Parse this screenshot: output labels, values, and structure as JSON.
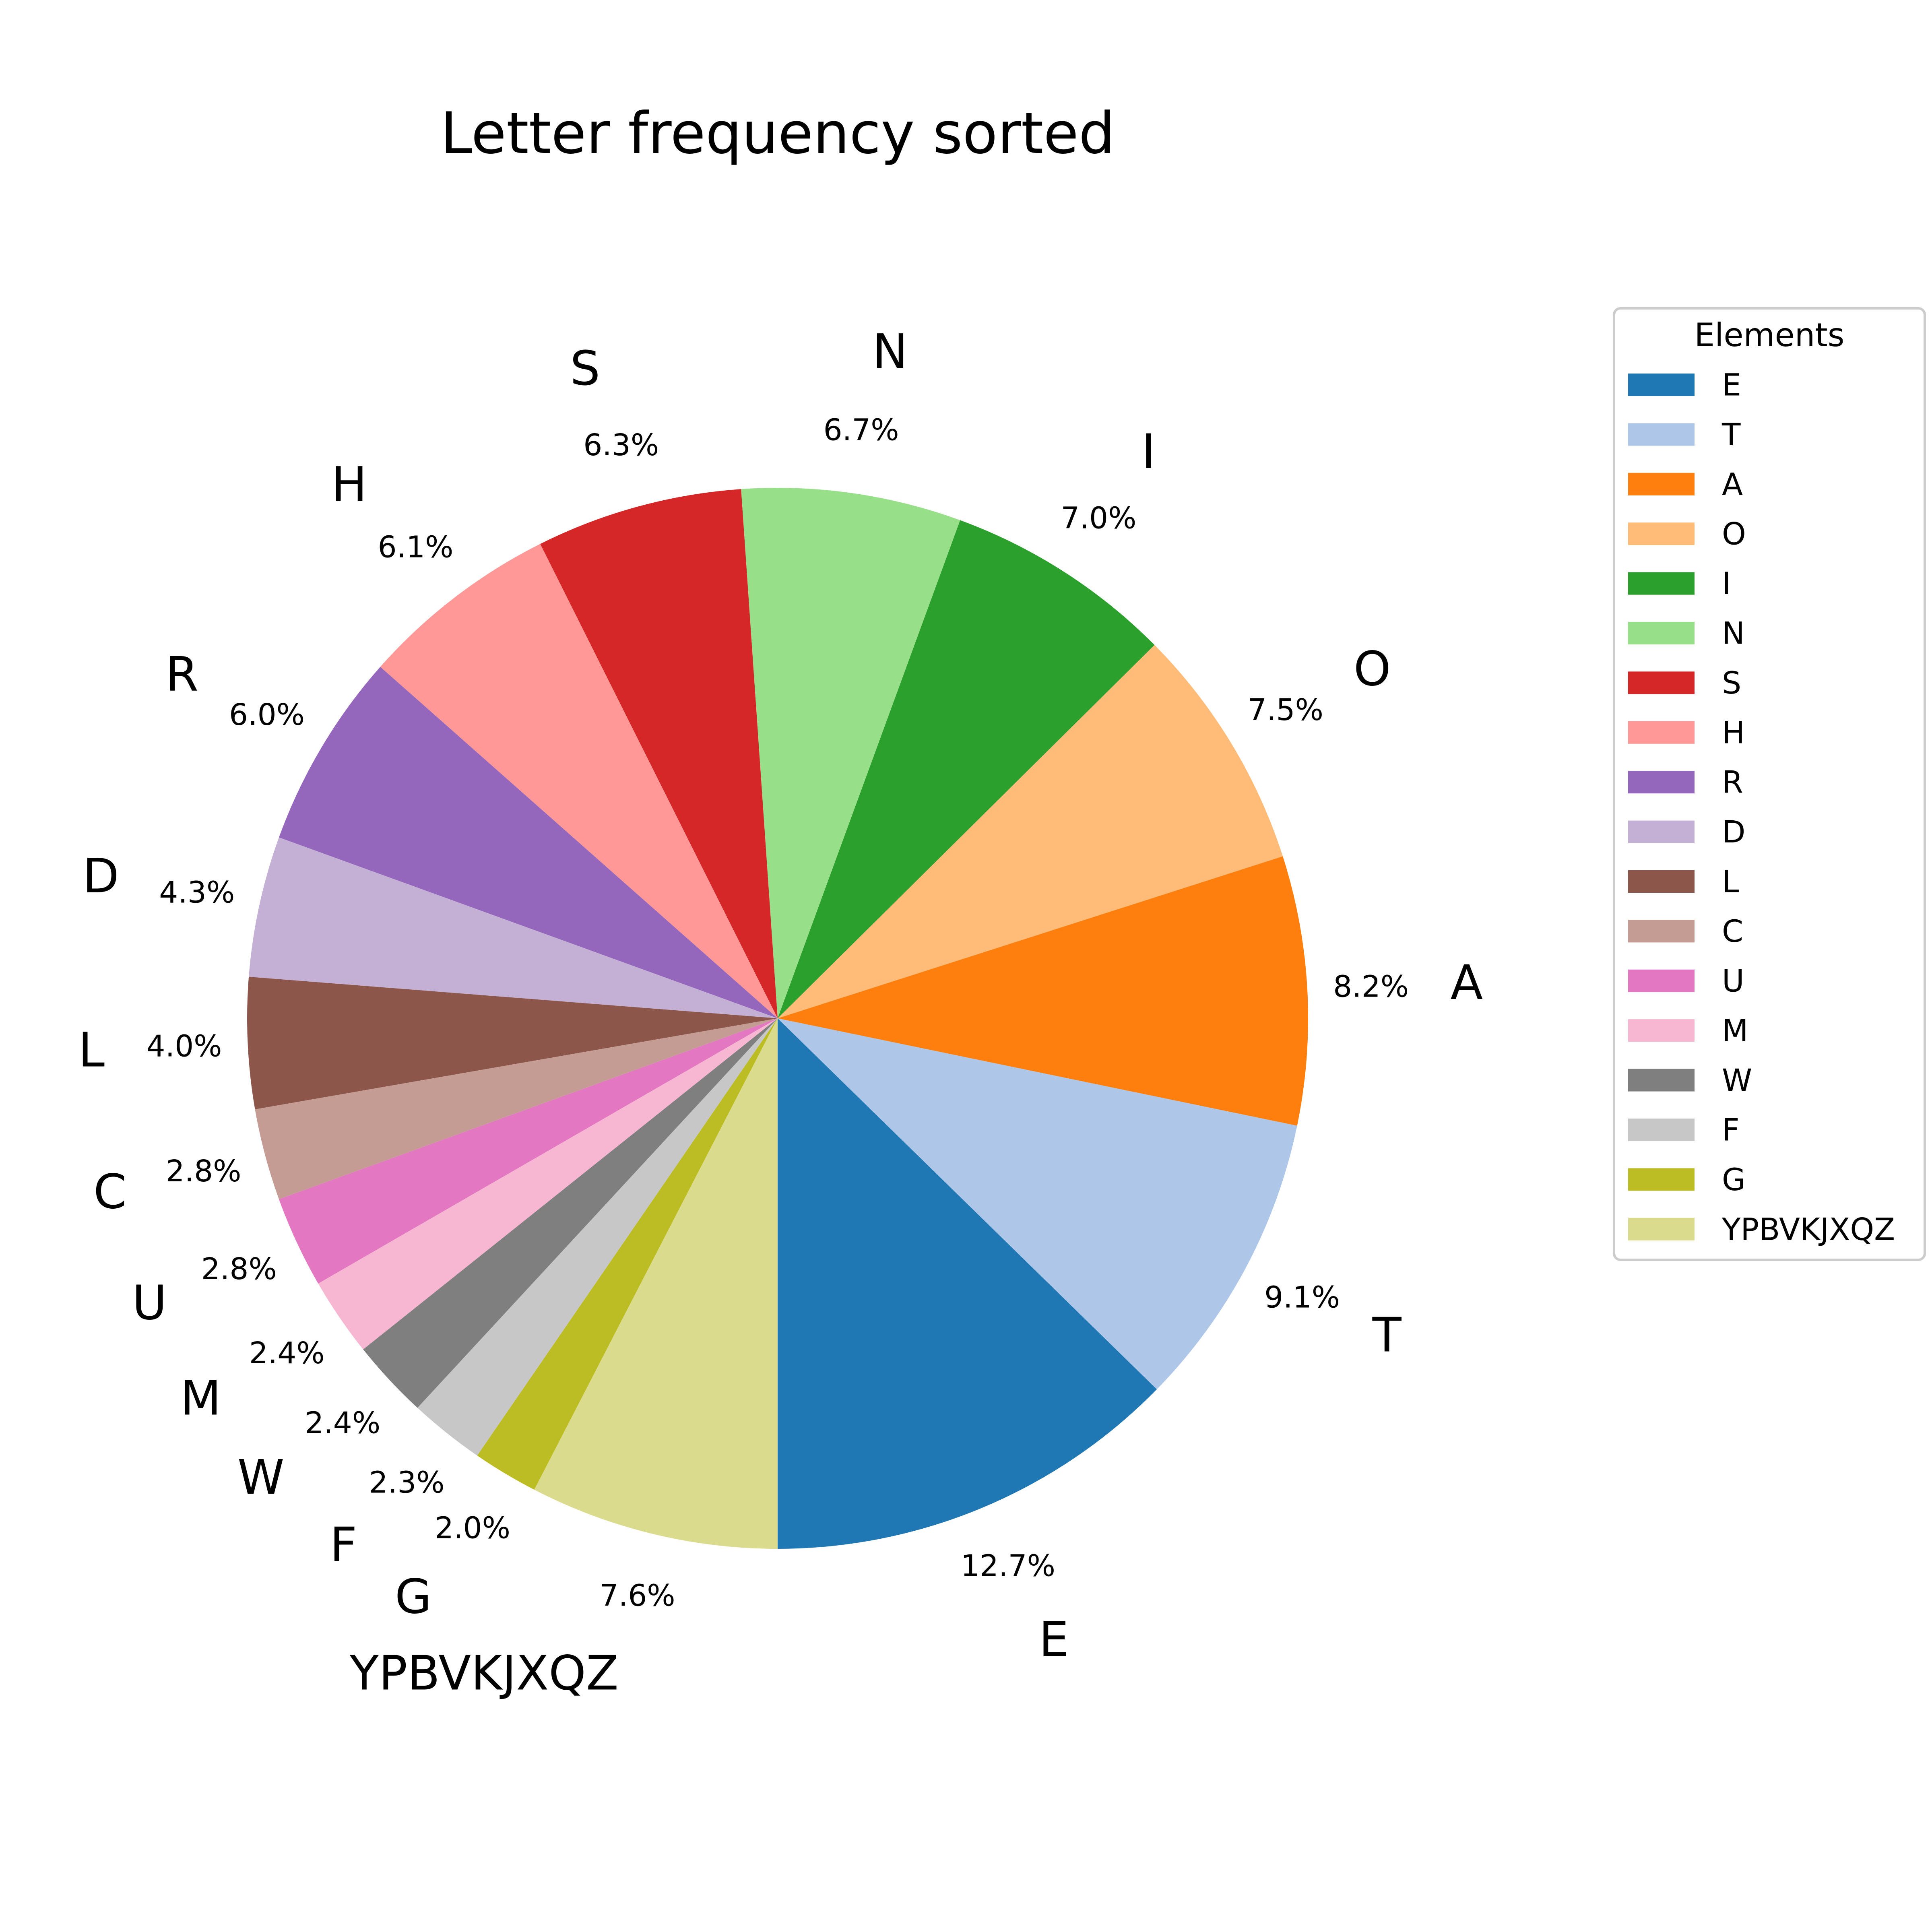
{
  "chart_data": {
    "type": "pie",
    "title": "Letter frequency sorted",
    "categories": [
      "E",
      "T",
      "A",
      "O",
      "I",
      "N",
      "S",
      "H",
      "R",
      "D",
      "L",
      "C",
      "U",
      "M",
      "W",
      "F",
      "G",
      "YPBVKJXQZ"
    ],
    "values": [
      12.7,
      9.1,
      8.2,
      7.5,
      7.0,
      6.7,
      6.3,
      6.1,
      6.0,
      4.3,
      4.0,
      2.8,
      2.8,
      2.4,
      2.4,
      2.3,
      2.0,
      7.6
    ],
    "value_labels": [
      "12.7%",
      "9.1%",
      "8.2%",
      "7.5%",
      "7.0%",
      "6.7%",
      "6.3%",
      "6.1%",
      "6.0%",
      "4.3%",
      "4.0%",
      "2.8%",
      "2.8%",
      "2.4%",
      "2.4%",
      "2.3%",
      "2.0%",
      "7.6%"
    ],
    "colors": [
      "#1f77b4",
      "#aec7e8",
      "#ff7f0e",
      "#ffbb78",
      "#2ca02c",
      "#98df8a",
      "#d62728",
      "#ff9896",
      "#9467bd",
      "#c5b0d5",
      "#8c564b",
      "#c49c94",
      "#e377c2",
      "#f7b6d2",
      "#7f7f7f",
      "#c7c7c7",
      "#bcbd22",
      "#dbdb8d"
    ],
    "start_angle_deg": 270,
    "direction": "counterclockwise",
    "legend": {
      "title": "Elements",
      "placement": "right"
    }
  }
}
